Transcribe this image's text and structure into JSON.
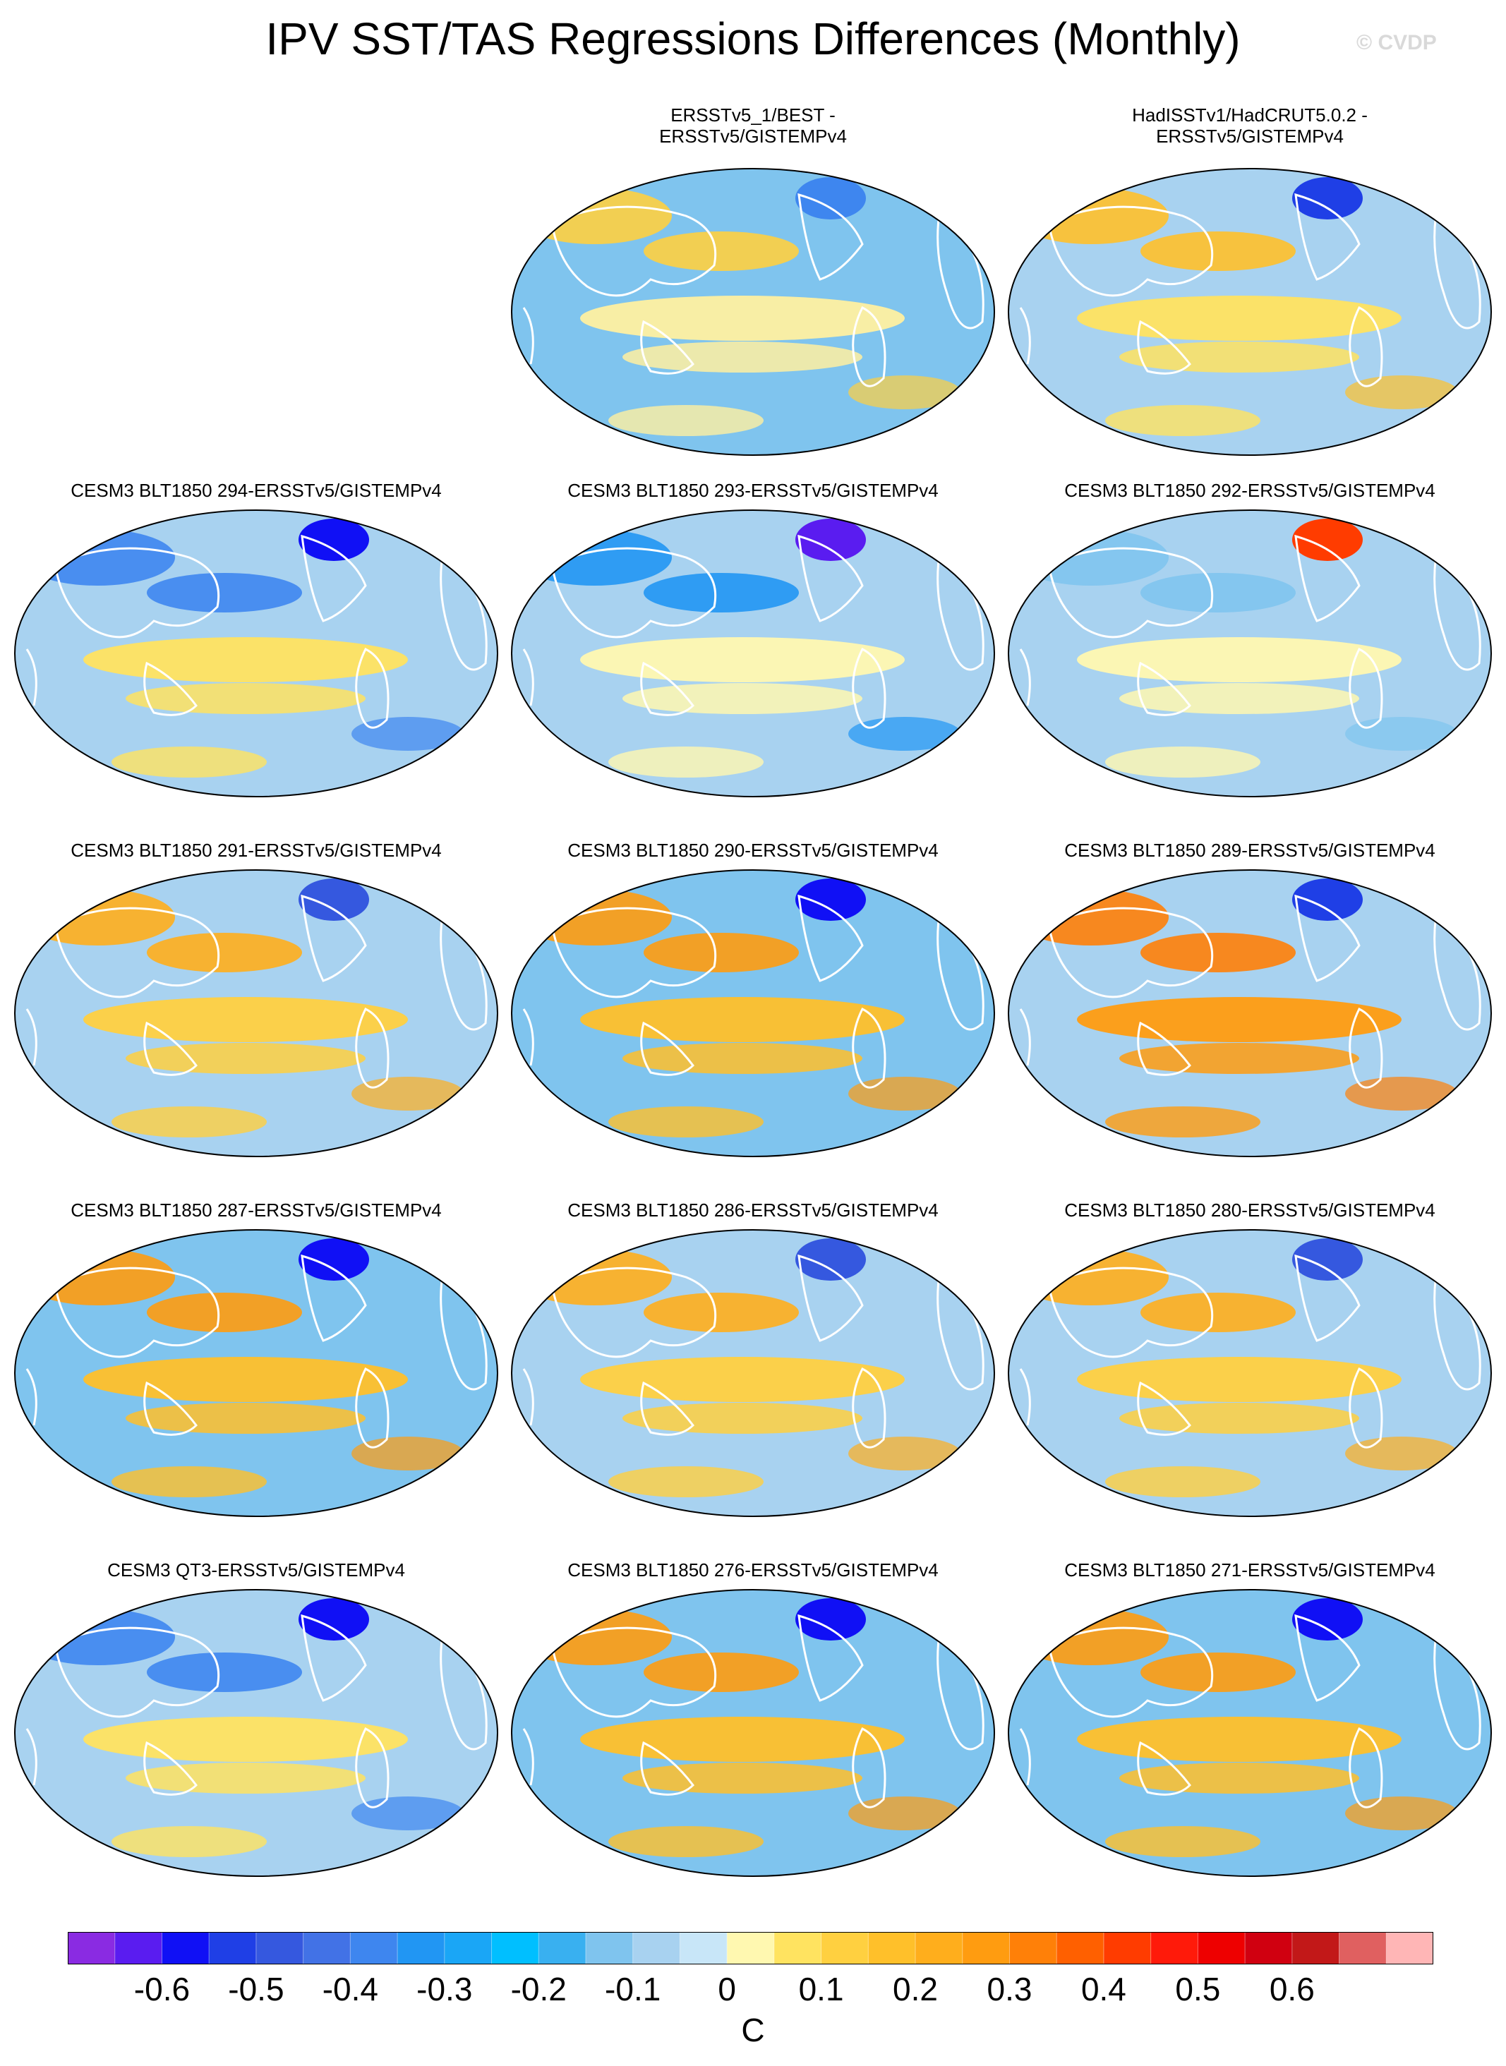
{
  "title": "IPV SST/TAS Regressions Differences (Monthly)",
  "watermark": "© CVDP",
  "panels": [
    {
      "label": "ERSSTv5_1/BEST -\nERSSTv5/GISTEMPv4",
      "pattern": "obs1"
    },
    {
      "label": "HadISSTv1/HadCRUT5.0.2 -\nERSSTv5/GISTEMPv4",
      "pattern": "obs2"
    },
    {
      "label": "CESM3 BLT1850 294-ERSSTv5/GISTEMPv4",
      "pattern": "cool"
    },
    {
      "label": "CESM3 BLT1850 293-ERSSTv5/GISTEMPv4",
      "pattern": "cool2"
    },
    {
      "label": "CESM3 BLT1850 292-ERSSTv5/GISTEMPv4",
      "pattern": "mixed"
    },
    {
      "label": "CESM3 BLT1850 291-ERSSTv5/GISTEMPv4",
      "pattern": "warm1"
    },
    {
      "label": "CESM3 BLT1850 290-ERSSTv5/GISTEMPv4",
      "pattern": "warm2"
    },
    {
      "label": "CESM3 BLT1850 289-ERSSTv5/GISTEMPv4",
      "pattern": "warm3"
    },
    {
      "label": "CESM3 BLT1850 287-ERSSTv5/GISTEMPv4",
      "pattern": "warm2"
    },
    {
      "label": "CESM3 BLT1850 286-ERSSTv5/GISTEMPv4",
      "pattern": "warm1"
    },
    {
      "label": "CESM3 BLT1850 280-ERSSTv5/GISTEMPv4",
      "pattern": "warm1"
    },
    {
      "label": "CESM3 QT3-ERSSTv5/GISTEMPv4",
      "pattern": "cool"
    },
    {
      "label": "CESM3 BLT1850 276-ERSSTv5/GISTEMPv4",
      "pattern": "warm2"
    },
    {
      "label": "CESM3 BLT1850 271-ERSSTv5/GISTEMPv4",
      "pattern": "warm2"
    }
  ],
  "colorbar": {
    "colors": [
      "#8a2be2",
      "#5a1cf0",
      "#1010f5",
      "#1f3fe6",
      "#3558df",
      "#4272e6",
      "#3e86ef",
      "#2196f3",
      "#1aa6f6",
      "#00bfff",
      "#39b0f0",
      "#7fc4ee",
      "#a8d2f0",
      "#c8e6f8",
      "#fff8b0",
      "#ffe360",
      "#ffd040",
      "#ffc02a",
      "#ffae1c",
      "#ff9c10",
      "#ff8008",
      "#ff6000",
      "#ff3c00",
      "#ff1a0a",
      "#ee0000",
      "#d00010",
      "#c21818",
      "#e06060",
      "#ffb6b6"
    ],
    "tick_labels": [
      "-0.6",
      "-0.5",
      "-0.4",
      "-0.3",
      "-0.2",
      "-0.1",
      "0",
      "0.1",
      "0.2",
      "0.3",
      "0.4",
      "0.5",
      "0.6"
    ],
    "unit": "C"
  }
}
